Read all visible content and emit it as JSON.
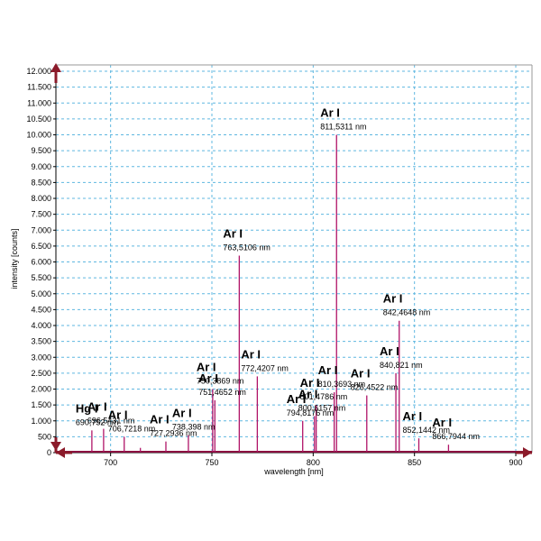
{
  "chart_data": {
    "type": "line",
    "xlabel": "wavelength [nm]",
    "ylabel": "intensity [counts]",
    "xlim": [
      673,
      908
    ],
    "ylim": [
      0,
      12200
    ],
    "x_ticks": [
      700,
      750,
      800,
      850,
      900
    ],
    "y_ticks": [
      {
        "value": 0,
        "label": "0"
      },
      {
        "value": 500,
        "label": "500"
      },
      {
        "value": 1000,
        "label": "1.000"
      },
      {
        "value": 1500,
        "label": "1.500"
      },
      {
        "value": 2000,
        "label": "2.000"
      },
      {
        "value": 2500,
        "label": "2.500"
      },
      {
        "value": 3000,
        "label": "3.000"
      },
      {
        "value": 3500,
        "label": "3.500"
      },
      {
        "value": 4000,
        "label": "4.000"
      },
      {
        "value": 4500,
        "label": "4.500"
      },
      {
        "value": 5000,
        "label": "5.000"
      },
      {
        "value": 5500,
        "label": "5.500"
      },
      {
        "value": 6000,
        "label": "6.000"
      },
      {
        "value": 6500,
        "label": "6.500"
      },
      {
        "value": 7000,
        "label": "7.000"
      },
      {
        "value": 7500,
        "label": "7.500"
      },
      {
        "value": 8000,
        "label": "8.000"
      },
      {
        "value": 8500,
        "label": "8.500"
      },
      {
        "value": 9000,
        "label": "9.000"
      },
      {
        "value": 9500,
        "label": "9.500"
      },
      {
        "value": 10000,
        "label": "10.000"
      },
      {
        "value": 10500,
        "label": "10.500"
      },
      {
        "value": 11000,
        "label": "11.000"
      },
      {
        "value": 11500,
        "label": "11.500"
      },
      {
        "value": 12000,
        "label": "12.000"
      }
    ],
    "grid": true,
    "colors": {
      "spectrum": "#b01468",
      "baseline": "#8a1040",
      "grid": "#5fb7e0",
      "axis_arrow": "#8b1a2a"
    },
    "peaks": [
      {
        "x": 690.752,
        "y": 700
      },
      {
        "x": 696.5431,
        "y": 750
      },
      {
        "x": 706.7218,
        "y": 500
      },
      {
        "x": 714.7,
        "y": 150
      },
      {
        "x": 727.2936,
        "y": 350
      },
      {
        "x": 738.398,
        "y": 550
      },
      {
        "x": 750.3869,
        "y": 2000
      },
      {
        "x": 751.4652,
        "y": 1650
      },
      {
        "x": 763.5106,
        "y": 6200
      },
      {
        "x": 772.4207,
        "y": 2400
      },
      {
        "x": 794.8176,
        "y": 1000
      },
      {
        "x": 800.6157,
        "y": 1150
      },
      {
        "x": 801.4786,
        "y": 1500
      },
      {
        "x": 810.3693,
        "y": 1900
      },
      {
        "x": 811.5311,
        "y": 10000
      },
      {
        "x": 826.4522,
        "y": 1800
      },
      {
        "x": 840.821,
        "y": 2500
      },
      {
        "x": 842.4648,
        "y": 4150
      },
      {
        "x": 852.1442,
        "y": 450
      },
      {
        "x": 866.7944,
        "y": 250
      }
    ],
    "annotations": [
      {
        "title": "Hg I",
        "wavelength": "690,752 nm",
        "x": 690.752,
        "y": 700
      },
      {
        "title": "Ar I",
        "wavelength": "696,5431 nm",
        "x": 696.5431,
        "y": 750
      },
      {
        "title": "Ar I",
        "wavelength": "706,7218 nm",
        "x": 706.7218,
        "y": 500
      },
      {
        "title": "Ar I",
        "wavelength": "727,2936 nm",
        "x": 727.2936,
        "y": 350
      },
      {
        "title": "Ar I",
        "wavelength": "738,398 nm",
        "x": 738.398,
        "y": 550
      },
      {
        "title": "Ar I",
        "wavelength": "750,3869 nm",
        "x": 750.3869,
        "y": 2000
      },
      {
        "title": "Ar I",
        "wavelength": "751,4652 nm",
        "x": 751.4652,
        "y": 1650
      },
      {
        "title": "Ar I",
        "wavelength": "763,5106 nm",
        "x": 763.5106,
        "y": 6200
      },
      {
        "title": "Ar I",
        "wavelength": "772,4207 nm",
        "x": 772.4207,
        "y": 2400
      },
      {
        "title": "Ar I",
        "wavelength": "794,8176 nm",
        "x": 794.8176,
        "y": 1000
      },
      {
        "title": "Ar I",
        "wavelength": "800,6157 nm",
        "x": 800.6157,
        "y": 1150
      },
      {
        "title": "Ar I",
        "wavelength": "801,4786 nm",
        "x": 801.4786,
        "y": 1500
      },
      {
        "title": "Ar I",
        "wavelength": "810,3693 nm",
        "x": 810.3693,
        "y": 1900
      },
      {
        "title": "Ar I",
        "wavelength": "811,5311 nm",
        "x": 811.5311,
        "y": 10000
      },
      {
        "title": "Ar I",
        "wavelength": "826,4522 nm",
        "x": 826.4522,
        "y": 1800
      },
      {
        "title": "Ar I",
        "wavelength": "840,821 nm",
        "x": 840.821,
        "y": 2500
      },
      {
        "title": "Ar I",
        "wavelength": "842,4648 nm",
        "x": 842.4648,
        "y": 4150
      },
      {
        "title": "Ar I",
        "wavelength": "852,1442 nm",
        "x": 852.1442,
        "y": 450
      },
      {
        "title": "Ar I",
        "wavelength": "866,7944 nm",
        "x": 866.7944,
        "y": 250
      }
    ]
  }
}
